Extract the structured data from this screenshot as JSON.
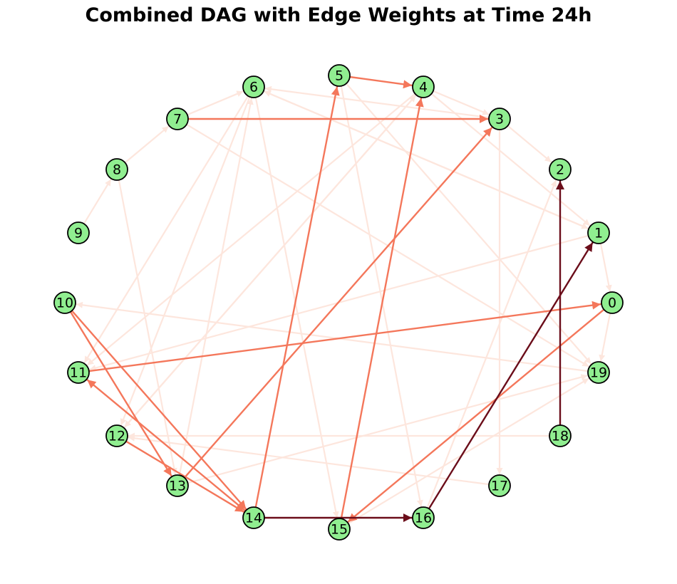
{
  "title": "Combined DAG with Edge Weights at Time 24h",
  "colors": {
    "node_fill": "#90ee90",
    "node_stroke": "#000000",
    "edge_light": "#fde6dd",
    "edge_medium": "#f4775b",
    "edge_strong": "#6b0d1a"
  },
  "nodes": [
    "0",
    "1",
    "2",
    "3",
    "4",
    "5",
    "6",
    "7",
    "8",
    "9",
    "10",
    "11",
    "12",
    "13",
    "14",
    "15",
    "16",
    "17",
    "18",
    "19"
  ],
  "edges": [
    {
      "source": "5",
      "target": "4",
      "weight": "medium"
    },
    {
      "source": "7",
      "target": "3",
      "weight": "medium"
    },
    {
      "source": "14",
      "target": "5",
      "weight": "medium"
    },
    {
      "source": "15",
      "target": "4",
      "weight": "medium"
    },
    {
      "source": "13",
      "target": "3",
      "weight": "medium"
    },
    {
      "source": "11",
      "target": "0",
      "weight": "medium"
    },
    {
      "source": "0",
      "target": "15",
      "weight": "medium"
    },
    {
      "source": "10",
      "target": "13",
      "weight": "medium"
    },
    {
      "source": "10",
      "target": "14",
      "weight": "medium"
    },
    {
      "source": "12",
      "target": "14",
      "weight": "medium"
    },
    {
      "source": "14",
      "target": "11",
      "weight": "medium"
    },
    {
      "source": "14",
      "target": "16",
      "weight": "strong"
    },
    {
      "source": "16",
      "target": "1",
      "weight": "strong"
    },
    {
      "source": "18",
      "target": "2",
      "weight": "strong"
    },
    {
      "source": "6",
      "target": "1",
      "weight": "light"
    },
    {
      "source": "6",
      "target": "11",
      "weight": "light"
    },
    {
      "source": "6",
      "target": "12",
      "weight": "light"
    },
    {
      "source": "6",
      "target": "15",
      "weight": "light"
    },
    {
      "source": "7",
      "target": "6",
      "weight": "light"
    },
    {
      "source": "8",
      "target": "7",
      "weight": "light"
    },
    {
      "source": "9",
      "target": "8",
      "weight": "light"
    },
    {
      "source": "8",
      "target": "13",
      "weight": "light"
    },
    {
      "source": "4",
      "target": "1",
      "weight": "light"
    },
    {
      "source": "4",
      "target": "11",
      "weight": "light"
    },
    {
      "source": "4",
      "target": "12",
      "weight": "light"
    },
    {
      "source": "4",
      "target": "3",
      "weight": "light"
    },
    {
      "source": "5",
      "target": "16",
      "weight": "light"
    },
    {
      "source": "5",
      "target": "19",
      "weight": "light"
    },
    {
      "source": "3",
      "target": "6",
      "weight": "light"
    },
    {
      "source": "3",
      "target": "17",
      "weight": "light"
    },
    {
      "source": "3",
      "target": "2",
      "weight": "light"
    },
    {
      "source": "1",
      "target": "6",
      "weight": "light"
    },
    {
      "source": "1",
      "target": "11",
      "weight": "light"
    },
    {
      "source": "1",
      "target": "0",
      "weight": "light"
    },
    {
      "source": "0",
      "target": "19",
      "weight": "light"
    },
    {
      "source": "19",
      "target": "10",
      "weight": "light"
    },
    {
      "source": "18",
      "target": "12",
      "weight": "light"
    },
    {
      "source": "17",
      "target": "12",
      "weight": "light"
    },
    {
      "source": "16",
      "target": "2",
      "weight": "light"
    },
    {
      "source": "13",
      "target": "6",
      "weight": "light"
    },
    {
      "source": "15",
      "target": "19",
      "weight": "light"
    },
    {
      "source": "13",
      "target": "19",
      "weight": "light"
    },
    {
      "source": "12",
      "target": "4",
      "weight": "light"
    },
    {
      "source": "7",
      "target": "19",
      "weight": "light"
    }
  ]
}
